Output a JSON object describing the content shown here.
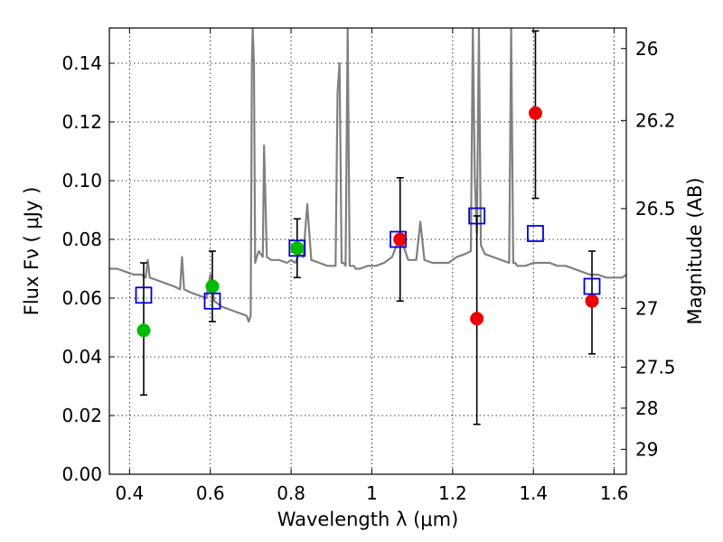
{
  "chart_data": {
    "type": "scatter",
    "xlabel": "Wavelength  λ (μm)",
    "ylabel": "Flux  Fν  ( μJy )",
    "y2label": "Magnitude (AB)",
    "xlim": [
      0.35,
      1.63
    ],
    "ylim": [
      0.0,
      0.152
    ],
    "x_ticks": [
      0.4,
      0.6,
      0.8,
      1.0,
      1.2,
      1.4,
      1.6
    ],
    "x_tick_labels": [
      "0.4",
      "0.6",
      "0.8",
      "1",
      "1.2",
      "1.4",
      "1.6"
    ],
    "y_ticks": [
      0.0,
      0.02,
      0.04,
      0.06,
      0.08,
      0.1,
      0.12,
      0.14
    ],
    "y_tick_labels": [
      "0.00",
      "0.02",
      "0.04",
      "0.06",
      "0.08",
      "0.10",
      "0.12",
      "0.14"
    ],
    "y2_ticks": [
      {
        "flux": 0.145,
        "label": "26"
      },
      {
        "flux": 0.1205,
        "label": "26.2"
      },
      {
        "flux": 0.0905,
        "label": "26.5"
      },
      {
        "flux": 0.0565,
        "label": "27"
      },
      {
        "flux": 0.0365,
        "label": "27.5"
      },
      {
        "flux": 0.0225,
        "label": "28"
      },
      {
        "flux": 0.0085,
        "label": "29"
      }
    ],
    "grid": true,
    "colors": {
      "model": "#808080",
      "green": "#00bb00",
      "red": "#ee0000",
      "square": "#0000dd",
      "errorbar": "#000000"
    },
    "series": [
      {
        "style": "errorbar",
        "points": [
          {
            "x": 0.435,
            "lo": 0.027,
            "hi": 0.072
          },
          {
            "x": 0.605,
            "lo": 0.052,
            "hi": 0.076
          },
          {
            "x": 0.815,
            "lo": 0.067,
            "hi": 0.087
          },
          {
            "x": 1.07,
            "lo": 0.059,
            "hi": 0.101
          },
          {
            "x": 1.26,
            "lo": 0.017,
            "hi": 0.088
          },
          {
            "x": 1.405,
            "lo": 0.094,
            "hi": 0.151
          },
          {
            "x": 1.545,
            "lo": 0.041,
            "hi": 0.076
          }
        ]
      },
      {
        "style": "filled-circle-green",
        "points": [
          {
            "x": 0.435,
            "y": 0.049
          },
          {
            "x": 0.605,
            "y": 0.064
          },
          {
            "x": 0.815,
            "y": 0.077
          }
        ]
      },
      {
        "style": "filled-circle-red",
        "points": [
          {
            "x": 1.07,
            "y": 0.08
          },
          {
            "x": 1.26,
            "y": 0.053
          },
          {
            "x": 1.405,
            "y": 0.123
          },
          {
            "x": 1.545,
            "y": 0.059
          }
        ]
      },
      {
        "style": "open-square-blue",
        "points": [
          {
            "x": 0.435,
            "y": 0.061
          },
          {
            "x": 0.605,
            "y": 0.059
          },
          {
            "x": 0.815,
            "y": 0.077
          },
          {
            "x": 1.065,
            "y": 0.08
          },
          {
            "x": 1.26,
            "y": 0.088
          },
          {
            "x": 1.405,
            "y": 0.082
          },
          {
            "x": 1.545,
            "y": 0.064
          }
        ]
      },
      {
        "style": "model-spectrum-line",
        "x": [
          0.35,
          0.37,
          0.39,
          0.41,
          0.43,
          0.44,
          0.445,
          0.45,
          0.47,
          0.49,
          0.51,
          0.525,
          0.53,
          0.535,
          0.55,
          0.57,
          0.59,
          0.6,
          0.61,
          0.63,
          0.65,
          0.67,
          0.69,
          0.695,
          0.7,
          0.703,
          0.705,
          0.708,
          0.711,
          0.715,
          0.72,
          0.725,
          0.73,
          0.733,
          0.74,
          0.75,
          0.77,
          0.79,
          0.8,
          0.81,
          0.82,
          0.83,
          0.84,
          0.85,
          0.87,
          0.89,
          0.91,
          0.915,
          0.92,
          0.925,
          0.93,
          0.935,
          0.94,
          0.945,
          0.95,
          0.955,
          0.96,
          0.97,
          0.99,
          1.01,
          1.03,
          1.05,
          1.07,
          1.09,
          1.11,
          1.12,
          1.13,
          1.15,
          1.17,
          1.19,
          1.2,
          1.21,
          1.23,
          1.245,
          1.25,
          1.255,
          1.26,
          1.265,
          1.27,
          1.28,
          1.3,
          1.32,
          1.34,
          1.345,
          1.35,
          1.355,
          1.36,
          1.38,
          1.4,
          1.42,
          1.44,
          1.46,
          1.48,
          1.5,
          1.52,
          1.54,
          1.56,
          1.58,
          1.6,
          1.62,
          1.63
        ],
        "y": [
          0.07,
          0.07,
          0.069,
          0.068,
          0.068,
          0.067,
          0.073,
          0.067,
          0.066,
          0.065,
          0.064,
          0.063,
          0.074,
          0.063,
          0.062,
          0.061,
          0.06,
          0.068,
          0.059,
          0.057,
          0.056,
          0.055,
          0.054,
          0.052,
          0.054,
          0.14,
          0.152,
          0.14,
          0.072,
          0.074,
          0.076,
          0.075,
          0.074,
          0.112,
          0.074,
          0.073,
          0.073,
          0.072,
          0.073,
          0.072,
          0.075,
          0.074,
          0.092,
          0.073,
          0.072,
          0.071,
          0.071,
          0.13,
          0.14,
          0.072,
          0.072,
          0.071,
          0.152,
          0.071,
          0.071,
          0.071,
          0.07,
          0.07,
          0.071,
          0.071,
          0.072,
          0.074,
          0.081,
          0.073,
          0.073,
          0.086,
          0.073,
          0.072,
          0.072,
          0.072,
          0.073,
          0.074,
          0.075,
          0.076,
          0.152,
          0.1,
          0.082,
          0.152,
          0.078,
          0.075,
          0.074,
          0.073,
          0.072,
          0.152,
          0.072,
          0.072,
          0.071,
          0.071,
          0.072,
          0.072,
          0.072,
          0.071,
          0.071,
          0.07,
          0.069,
          0.068,
          0.068,
          0.067,
          0.067,
          0.067,
          0.068
        ]
      }
    ]
  }
}
